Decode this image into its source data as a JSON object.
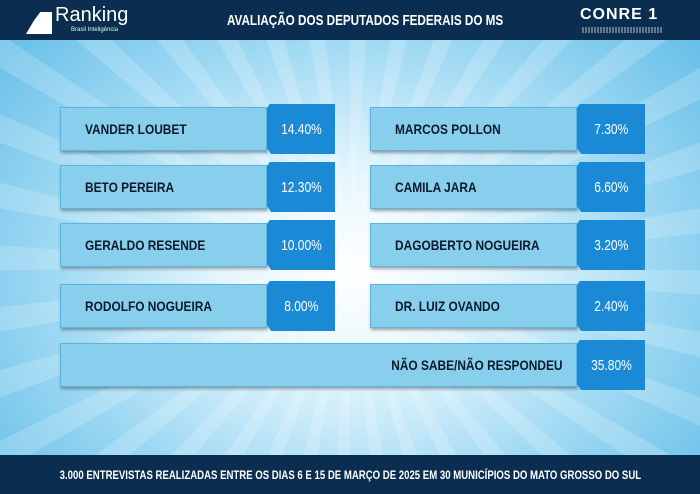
{
  "header": {
    "logo_text": "Ranking",
    "logo_sub": "Brasil Inteligência",
    "title": "AVALIAÇÃO DOS DEPUTADOS FEDERAIS DO MS",
    "partner_logo": "CONRE 1"
  },
  "chart_data": {
    "type": "table",
    "categories": [
      "VANDER LOUBET",
      "BETO PEREIRA",
      "GERALDO RESENDE",
      "RODOLFO NOGUEIRA",
      "MARCOS POLLON",
      "CAMILA JARA",
      "DAGOBERTO NOGUEIRA",
      "DR. LUIZ OVANDO",
      "NÃO SABE/NÃO RESPONDEU"
    ],
    "values": [
      "14.40%",
      "12.30%",
      "10.00%",
      "8.00%",
      "7.30%",
      "6.60%",
      "3.20%",
      "2.40%",
      "35.80%"
    ],
    "title": "AVALIAÇÃO DOS DEPUTADOS FEDERAIS DO MS"
  },
  "colors": {
    "header": "#0b2d4f",
    "label_box": "#88cfee",
    "value_box": "#1a8ad6"
  },
  "footer": {
    "text": "3.000 ENTREVISTAS REALIZADAS ENTRE OS DIAS 6 E 15 DE MARÇO DE 2025 EM 30 MUNICÍPIOS DO MATO GROSSO DO SUL"
  }
}
